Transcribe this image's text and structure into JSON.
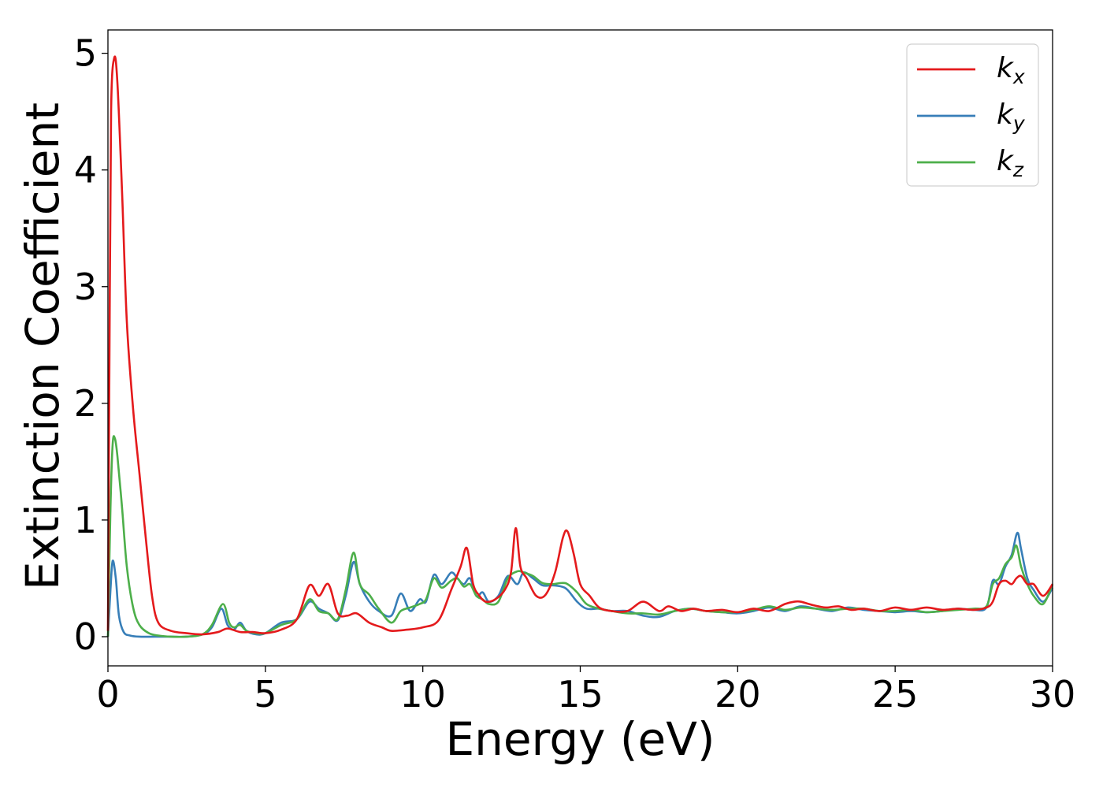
{
  "chart_data": {
    "type": "line",
    "xlabel": "Energy (eV)",
    "ylabel": "Extinction Coefficient",
    "xlim": [
      0,
      30
    ],
    "ylim": [
      -0.25,
      5.2
    ],
    "xticks": [
      0,
      5,
      10,
      15,
      20,
      25,
      30
    ],
    "yticks": [
      0,
      1,
      2,
      3,
      4,
      5
    ],
    "xtick_labels": [
      "0",
      "5",
      "10",
      "15",
      "20",
      "25",
      "30"
    ],
    "ytick_labels": [
      "0",
      "1",
      "2",
      "3",
      "4",
      "5"
    ],
    "grid": false,
    "legend_position": "top-right",
    "series": [
      {
        "name": "k_x",
        "label_base": "k",
        "label_sub": "x",
        "color": "#e41a1c",
        "x": [
          0,
          0.05,
          0.1,
          0.2,
          0.3,
          0.45,
          0.6,
          0.8,
          1.0,
          1.2,
          1.4,
          1.6,
          2.0,
          2.5,
          3.0,
          3.5,
          3.8,
          4.2,
          4.6,
          5.0,
          5.5,
          6.0,
          6.4,
          6.7,
          7.0,
          7.3,
          7.6,
          7.9,
          8.3,
          8.7,
          9.0,
          9.5,
          10.0,
          10.5,
          10.9,
          11.2,
          11.4,
          11.6,
          11.8,
          12.0,
          12.3,
          12.6,
          12.8,
          12.95,
          13.1,
          13.3,
          13.6,
          13.9,
          14.2,
          14.45,
          14.6,
          14.8,
          15.0,
          15.3,
          15.6,
          16.0,
          16.5,
          17.0,
          17.5,
          17.8,
          18.2,
          18.6,
          19.0,
          19.5,
          20.0,
          20.5,
          21.0,
          21.5,
          21.8,
          22.0,
          22.4,
          22.8,
          23.2,
          23.6,
          24.0,
          24.5,
          25.0,
          25.5,
          26.0,
          26.5,
          27.0,
          27.5,
          27.9,
          28.1,
          28.3,
          28.5,
          28.7,
          28.85,
          29.0,
          29.2,
          29.4,
          29.7,
          30.0
        ],
        "y": [
          0.05,
          2.5,
          4.5,
          4.96,
          4.75,
          3.8,
          2.7,
          1.95,
          1.4,
          0.85,
          0.35,
          0.12,
          0.05,
          0.03,
          0.02,
          0.04,
          0.07,
          0.04,
          0.04,
          0.03,
          0.06,
          0.15,
          0.44,
          0.35,
          0.45,
          0.2,
          0.18,
          0.2,
          0.12,
          0.08,
          0.05,
          0.06,
          0.08,
          0.14,
          0.4,
          0.6,
          0.76,
          0.45,
          0.35,
          0.3,
          0.32,
          0.4,
          0.55,
          0.93,
          0.6,
          0.5,
          0.35,
          0.36,
          0.55,
          0.85,
          0.9,
          0.7,
          0.45,
          0.35,
          0.25,
          0.22,
          0.22,
          0.3,
          0.22,
          0.26,
          0.22,
          0.24,
          0.22,
          0.23,
          0.21,
          0.24,
          0.22,
          0.28,
          0.3,
          0.3,
          0.27,
          0.25,
          0.26,
          0.23,
          0.24,
          0.22,
          0.25,
          0.23,
          0.25,
          0.23,
          0.24,
          0.23,
          0.25,
          0.3,
          0.45,
          0.48,
          0.45,
          0.5,
          0.52,
          0.45,
          0.45,
          0.35,
          0.45
        ]
      },
      {
        "name": "k_y",
        "label_base": "k",
        "label_sub": "y",
        "color": "#377eb8",
        "x": [
          0,
          0.08,
          0.15,
          0.25,
          0.35,
          0.5,
          0.7,
          1.0,
          1.5,
          2.0,
          2.5,
          3.0,
          3.3,
          3.6,
          3.8,
          4.0,
          4.2,
          4.4,
          4.7,
          5.0,
          5.5,
          6.0,
          6.4,
          6.7,
          7.0,
          7.3,
          7.55,
          7.8,
          8.0,
          8.3,
          8.6,
          9.0,
          9.3,
          9.6,
          9.9,
          10.1,
          10.35,
          10.6,
          10.9,
          11.1,
          11.3,
          11.5,
          11.7,
          11.9,
          12.1,
          12.4,
          12.7,
          13.0,
          13.2,
          13.5,
          13.8,
          14.1,
          14.4,
          14.6,
          14.9,
          15.2,
          15.6,
          16.0,
          16.5,
          17.0,
          17.5,
          18.0,
          18.5,
          19.0,
          19.5,
          20.0,
          20.5,
          21.0,
          21.5,
          22.0,
          22.5,
          23.0,
          23.5,
          24.0,
          24.5,
          25.0,
          25.5,
          26.0,
          26.5,
          27.0,
          27.5,
          27.9,
          28.1,
          28.3,
          28.5,
          28.7,
          28.88,
          29.0,
          29.2,
          29.4,
          29.7,
          30.0
        ],
        "y": [
          0.0,
          0.4,
          0.65,
          0.5,
          0.18,
          0.04,
          0.01,
          0.0,
          0.0,
          0.0,
          0.0,
          0.02,
          0.08,
          0.24,
          0.1,
          0.06,
          0.12,
          0.05,
          0.02,
          0.03,
          0.12,
          0.15,
          0.3,
          0.24,
          0.2,
          0.14,
          0.35,
          0.64,
          0.45,
          0.3,
          0.22,
          0.18,
          0.37,
          0.22,
          0.32,
          0.3,
          0.53,
          0.45,
          0.55,
          0.5,
          0.45,
          0.5,
          0.35,
          0.38,
          0.3,
          0.35,
          0.52,
          0.45,
          0.55,
          0.5,
          0.44,
          0.44,
          0.43,
          0.4,
          0.3,
          0.24,
          0.24,
          0.22,
          0.22,
          0.18,
          0.17,
          0.22,
          0.24,
          0.22,
          0.21,
          0.2,
          0.22,
          0.25,
          0.22,
          0.26,
          0.24,
          0.22,
          0.25,
          0.23,
          0.22,
          0.21,
          0.22,
          0.21,
          0.22,
          0.24,
          0.23,
          0.25,
          0.48,
          0.45,
          0.6,
          0.7,
          0.89,
          0.75,
          0.5,
          0.4,
          0.3,
          0.42
        ]
      },
      {
        "name": "k_z",
        "label_base": "k",
        "label_sub": "z",
        "color": "#4daf4a",
        "x": [
          0,
          0.08,
          0.15,
          0.22,
          0.3,
          0.45,
          0.6,
          0.8,
          1.0,
          1.3,
          1.6,
          2.0,
          2.5,
          3.0,
          3.3,
          3.65,
          3.85,
          4.0,
          4.2,
          4.4,
          4.7,
          5.0,
          5.5,
          6.0,
          6.4,
          6.7,
          7.0,
          7.3,
          7.55,
          7.8,
          8.0,
          8.3,
          8.6,
          9.0,
          9.3,
          9.6,
          9.9,
          10.1,
          10.35,
          10.6,
          10.9,
          11.1,
          11.3,
          11.5,
          11.7,
          11.9,
          12.1,
          12.4,
          12.7,
          13.0,
          13.2,
          13.5,
          13.8,
          14.1,
          14.4,
          14.6,
          14.9,
          15.2,
          15.6,
          16.0,
          16.5,
          17.0,
          17.5,
          18.0,
          18.5,
          19.0,
          19.5,
          20.0,
          20.5,
          21.0,
          21.5,
          22.0,
          22.5,
          23.0,
          23.5,
          24.0,
          24.5,
          25.0,
          25.5,
          26.0,
          26.5,
          27.0,
          27.5,
          27.9,
          28.1,
          28.3,
          28.5,
          28.7,
          28.85,
          29.0,
          29.2,
          29.4,
          29.7,
          30.0
        ],
        "y": [
          0.0,
          1.1,
          1.65,
          1.7,
          1.55,
          1.1,
          0.6,
          0.25,
          0.1,
          0.03,
          0.01,
          0.0,
          0.0,
          0.02,
          0.1,
          0.28,
          0.12,
          0.08,
          0.1,
          0.05,
          0.03,
          0.03,
          0.1,
          0.15,
          0.32,
          0.22,
          0.2,
          0.15,
          0.4,
          0.72,
          0.45,
          0.36,
          0.24,
          0.12,
          0.22,
          0.25,
          0.28,
          0.32,
          0.5,
          0.42,
          0.48,
          0.5,
          0.43,
          0.45,
          0.35,
          0.32,
          0.28,
          0.3,
          0.5,
          0.56,
          0.55,
          0.52,
          0.46,
          0.45,
          0.46,
          0.45,
          0.38,
          0.28,
          0.24,
          0.22,
          0.2,
          0.2,
          0.19,
          0.22,
          0.24,
          0.22,
          0.21,
          0.21,
          0.23,
          0.26,
          0.23,
          0.25,
          0.24,
          0.23,
          0.24,
          0.24,
          0.22,
          0.22,
          0.23,
          0.21,
          0.22,
          0.23,
          0.24,
          0.26,
          0.45,
          0.5,
          0.62,
          0.68,
          0.78,
          0.6,
          0.45,
          0.35,
          0.28,
          0.45
        ]
      }
    ]
  }
}
